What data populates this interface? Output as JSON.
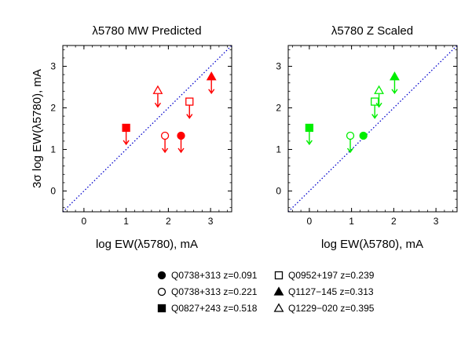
{
  "figure": {
    "ylabel": "3σ log EW(λ5780), mA"
  },
  "legend": {
    "items": [
      {
        "symbol": "filled-circle",
        "label": "Q0738+313 z=0.091"
      },
      {
        "symbol": "open-circle",
        "label": "Q0738+313 z=0.221"
      },
      {
        "symbol": "filled-square",
        "label": "Q0827+243 z=0.518"
      },
      {
        "symbol": "open-square",
        "label": "Q0952+197 z=0.239"
      },
      {
        "symbol": "filled-triangle",
        "label": "Q1127−145 z=0.313"
      },
      {
        "symbol": "open-triangle",
        "label": "Q1229−020 z=0.395"
      }
    ]
  },
  "chart_data": [
    {
      "type": "scatter",
      "title": "λ5780 MW Predicted",
      "xlabel": "log EW(λ5780), mA",
      "ylabel": "3σ log EW(λ5780), mA",
      "xlim": [
        -0.5,
        3.5
      ],
      "ylim": [
        -0.5,
        3.5
      ],
      "xticks": [
        0,
        1,
        2,
        3
      ],
      "yticks": [
        0,
        1,
        2,
        3
      ],
      "grid": false,
      "color": "#ff0000",
      "reference_line": {
        "style": "dotted",
        "color": "#0000cc",
        "slope": 1,
        "intercept": 0
      },
      "points": [
        {
          "object": "Q0738+313 z=0.091",
          "symbol": "filled-circle",
          "x": 2.3,
          "y": 1.33,
          "upper_limit": true
        },
        {
          "object": "Q0738+313 z=0.221",
          "symbol": "open-circle",
          "x": 1.92,
          "y": 1.33,
          "upper_limit": true
        },
        {
          "object": "Q0827+243 z=0.518",
          "symbol": "filled-square",
          "x": 1.0,
          "y": 1.52,
          "upper_limit": true
        },
        {
          "object": "Q0952+197 z=0.239",
          "symbol": "open-square",
          "x": 2.5,
          "y": 2.15,
          "upper_limit": true
        },
        {
          "object": "Q1127−145 z=0.313",
          "symbol": "filled-triangle",
          "x": 3.02,
          "y": 2.75,
          "upper_limit": true
        },
        {
          "object": "Q1229−020 z=0.395",
          "symbol": "open-triangle",
          "x": 1.75,
          "y": 2.42,
          "upper_limit": true
        }
      ]
    },
    {
      "type": "scatter",
      "title": "λ5780 Z Scaled",
      "xlabel": "log EW(λ5780), mA",
      "ylabel": "",
      "xlim": [
        -0.5,
        3.5
      ],
      "ylim": [
        -0.5,
        3.5
      ],
      "xticks": [
        0,
        1,
        2,
        3
      ],
      "yticks": [
        0,
        1,
        2,
        3
      ],
      "grid": false,
      "color": "#00ee00",
      "reference_line": {
        "style": "dotted",
        "color": "#0000cc",
        "slope": 1,
        "intercept": 0
      },
      "points": [
        {
          "object": "Q0738+313 z=0.091",
          "symbol": "filled-circle",
          "x": 1.28,
          "y": 1.33,
          "upper_limit": false
        },
        {
          "object": "Q0738+313 z=0.221",
          "symbol": "open-circle",
          "x": 0.97,
          "y": 1.33,
          "upper_limit": true
        },
        {
          "object": "Q0827+243 z=0.518",
          "symbol": "filled-square",
          "x": 0.0,
          "y": 1.52,
          "upper_limit": true
        },
        {
          "object": "Q0952+197 z=0.239",
          "symbol": "open-square",
          "x": 1.55,
          "y": 2.15,
          "upper_limit": true
        },
        {
          "object": "Q1127−145 z=0.313",
          "symbol": "filled-triangle",
          "x": 2.02,
          "y": 2.75,
          "upper_limit": true
        },
        {
          "object": "Q1229−020 z=0.395",
          "symbol": "open-triangle",
          "x": 1.65,
          "y": 2.42,
          "upper_limit": true
        }
      ]
    }
  ]
}
